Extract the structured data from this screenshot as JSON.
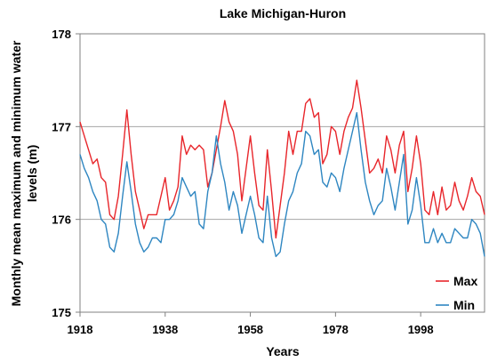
{
  "chart_data": {
    "type": "line",
    "title": "Lake Michigan-Huron",
    "xlabel": "Years",
    "ylabel": "Monthly mean maximum and minimum water levels (m)",
    "ylabel_lines": [
      "Monthly mean maximum and minimum water",
      "levels (m)"
    ],
    "xlim": [
      1918,
      2013
    ],
    "ylim": [
      175,
      178
    ],
    "x_ticks": [
      1918,
      1938,
      1958,
      1978,
      1998
    ],
    "y_ticks": [
      175,
      176,
      177,
      178
    ],
    "grid": "horizontal",
    "legend_position": "bottom-right",
    "series": [
      {
        "name": "Max",
        "color": "#e8262b",
        "x": [
          1918,
          1919,
          1920,
          1921,
          1922,
          1923,
          1924,
          1925,
          1926,
          1927,
          1928,
          1929,
          1930,
          1931,
          1932,
          1933,
          1934,
          1935,
          1936,
          1937,
          1938,
          1939,
          1940,
          1941,
          1942,
          1943,
          1944,
          1945,
          1946,
          1947,
          1948,
          1949,
          1950,
          1951,
          1952,
          1953,
          1954,
          1955,
          1956,
          1957,
          1958,
          1959,
          1960,
          1961,
          1962,
          1963,
          1964,
          1965,
          1966,
          1967,
          1968,
          1969,
          1970,
          1971,
          1972,
          1973,
          1974,
          1975,
          1976,
          1977,
          1978,
          1979,
          1980,
          1981,
          1982,
          1983,
          1984,
          1985,
          1986,
          1987,
          1988,
          1989,
          1990,
          1991,
          1992,
          1993,
          1994,
          1995,
          1996,
          1997,
          1998,
          1999,
          2000,
          2001,
          2002,
          2003,
          2004,
          2005,
          2006,
          2007,
          2008,
          2009,
          2010,
          2011,
          2012,
          2013
        ],
        "values": [
          177.05,
          176.9,
          176.75,
          176.6,
          176.65,
          176.45,
          176.4,
          176.05,
          176.0,
          176.25,
          176.7,
          177.18,
          176.7,
          176.3,
          176.1,
          175.9,
          176.05,
          176.05,
          176.05,
          176.25,
          176.45,
          176.1,
          176.2,
          176.35,
          176.9,
          176.7,
          176.8,
          176.75,
          176.8,
          176.75,
          176.35,
          176.5,
          176.75,
          177.0,
          177.28,
          177.05,
          176.95,
          176.7,
          176.2,
          176.55,
          176.9,
          176.5,
          176.15,
          176.1,
          176.75,
          176.3,
          175.8,
          176.15,
          176.5,
          176.95,
          176.7,
          176.95,
          176.95,
          177.25,
          177.3,
          177.1,
          177.15,
          176.6,
          176.7,
          177.0,
          176.95,
          176.7,
          176.95,
          177.1,
          177.2,
          177.5,
          177.2,
          176.85,
          176.5,
          176.55,
          176.65,
          176.5,
          176.9,
          176.75,
          176.5,
          176.8,
          176.95,
          176.3,
          176.55,
          176.9,
          176.6,
          176.1,
          176.05,
          176.3,
          176.05,
          176.35,
          176.1,
          176.15,
          176.4,
          176.2,
          176.1,
          176.25,
          176.45,
          176.3,
          176.25,
          176.05
        ]
      },
      {
        "name": "Min",
        "color": "#2e86c1",
        "x": [
          1918,
          1919,
          1920,
          1921,
          1922,
          1923,
          1924,
          1925,
          1926,
          1927,
          1928,
          1929,
          1930,
          1931,
          1932,
          1933,
          1934,
          1935,
          1936,
          1937,
          1938,
          1939,
          1940,
          1941,
          1942,
          1943,
          1944,
          1945,
          1946,
          1947,
          1948,
          1949,
          1950,
          1951,
          1952,
          1953,
          1954,
          1955,
          1956,
          1957,
          1958,
          1959,
          1960,
          1961,
          1962,
          1963,
          1964,
          1965,
          1966,
          1967,
          1968,
          1969,
          1970,
          1971,
          1972,
          1973,
          1974,
          1975,
          1976,
          1977,
          1978,
          1979,
          1980,
          1981,
          1982,
          1983,
          1984,
          1985,
          1986,
          1987,
          1988,
          1989,
          1990,
          1991,
          1992,
          1993,
          1994,
          1995,
          1996,
          1997,
          1998,
          1999,
          2000,
          2001,
          2002,
          2003,
          2004,
          2005,
          2006,
          2007,
          2008,
          2009,
          2010,
          2011,
          2012,
          2013
        ],
        "values": [
          176.7,
          176.55,
          176.45,
          176.3,
          176.2,
          176.0,
          175.95,
          175.7,
          175.65,
          175.85,
          176.25,
          176.62,
          176.3,
          175.95,
          175.75,
          175.65,
          175.7,
          175.8,
          175.8,
          175.75,
          176.0,
          176.0,
          176.05,
          176.2,
          176.45,
          176.35,
          176.25,
          176.3,
          175.95,
          175.9,
          176.3,
          176.5,
          176.9,
          176.6,
          176.4,
          176.1,
          176.3,
          176.15,
          175.85,
          176.05,
          176.25,
          176.05,
          175.8,
          175.75,
          176.25,
          175.8,
          175.6,
          175.65,
          175.95,
          176.2,
          176.3,
          176.5,
          176.6,
          176.95,
          176.9,
          176.7,
          176.75,
          176.4,
          176.35,
          176.5,
          176.45,
          176.3,
          176.55,
          176.75,
          176.95,
          177.15,
          176.75,
          176.4,
          176.2,
          176.05,
          176.15,
          176.2,
          176.55,
          176.35,
          176.1,
          176.4,
          176.7,
          175.95,
          176.1,
          176.45,
          176.15,
          175.75,
          175.75,
          175.9,
          175.75,
          175.85,
          175.75,
          175.75,
          175.9,
          175.85,
          175.8,
          175.8,
          176.0,
          175.95,
          175.85,
          175.6
        ]
      }
    ]
  }
}
